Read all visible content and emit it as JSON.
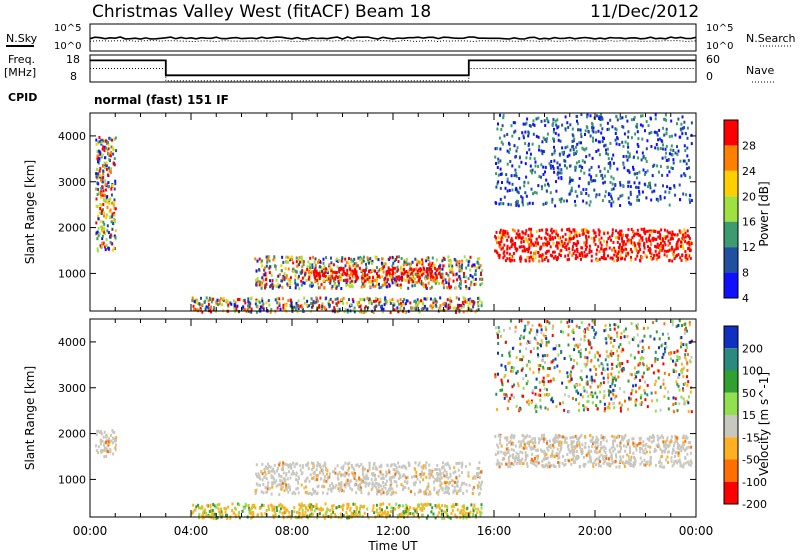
{
  "header": {
    "title": "Christmas Valley West (fitACF)",
    "beam": "Beam 18",
    "date": "11/Dec/2012"
  },
  "noise_panel": {
    "left_label": "N.Sky",
    "right_label": "N.Search",
    "left_ticks": [
      "10^5",
      "10^0"
    ],
    "right_ticks": [
      "10^5",
      "10^0"
    ]
  },
  "freq_panel": {
    "left_label_1": "Freq.",
    "left_label_2": "[MHz]",
    "right_label": "Nave",
    "left_ticks": [
      "18",
      "8"
    ],
    "right_ticks": [
      "60",
      "0"
    ]
  },
  "cpid": {
    "label": "CPID",
    "value": "normal (fast) 151 IF"
  },
  "chart_data": [
    {
      "type": "heatmap",
      "name": "Power",
      "ylabel": "Slant Range [km]",
      "xlabel": "",
      "ylim": [
        180,
        4500
      ],
      "yticks": [
        1000,
        2000,
        3000,
        4000
      ],
      "colorbar_label": "Power [dB]",
      "colorbar_ticks": [
        "28",
        "24",
        "20",
        "16",
        "12",
        "8",
        "4"
      ],
      "colorbar_colors": [
        "#ff0000",
        "#ff7f00",
        "#ffd000",
        "#a0e040",
        "#3c9c70",
        "#2050a0",
        "#1010ff"
      ],
      "features": [
        {
          "t0": 0.2,
          "t1": 1.0,
          "r0": 1500,
          "r1": 4000,
          "level": "mixed"
        },
        {
          "t0": 4.0,
          "t1": 15.5,
          "r0": 180,
          "r1": 500,
          "level": "mixed"
        },
        {
          "t0": 6.5,
          "t1": 15.5,
          "r0": 700,
          "r1": 1400,
          "level": "mixed"
        },
        {
          "t0": 8.5,
          "t1": 14.0,
          "r0": 850,
          "r1": 1150,
          "level": "high"
        },
        {
          "t0": 16.0,
          "t1": 23.8,
          "r0": 1300,
          "r1": 2000,
          "level": "high"
        },
        {
          "t0": 16.0,
          "t1": 23.8,
          "r0": 2500,
          "r1": 4500,
          "level": "low"
        }
      ]
    },
    {
      "type": "heatmap",
      "name": "Velocity",
      "ylabel": "Slant Range [km]",
      "xlabel": "Time UT",
      "xticks": [
        "00:00",
        "04:00",
        "08:00",
        "12:00",
        "16:00",
        "20:00",
        "00:00"
      ],
      "ylim": [
        180,
        4500
      ],
      "yticks": [
        1000,
        2000,
        3000,
        4000
      ],
      "colorbar_label": "Velocity [m s^-1]",
      "colorbar_ticks": [
        "200",
        "100",
        "50",
        "15",
        "-15",
        "-50",
        "-100",
        "-200"
      ],
      "colorbar_colors": [
        "#1030c0",
        "#2a8a80",
        "#30a030",
        "#90e050",
        "#c8c8c0",
        "#ffb020",
        "#ff7000",
        "#ff0000"
      ],
      "features": [
        {
          "t0": 0.2,
          "t1": 1.0,
          "r0": 1500,
          "r1": 2100,
          "level": "ground"
        },
        {
          "t0": 4.0,
          "t1": 15.5,
          "r0": 180,
          "r1": 500,
          "level": "negative"
        },
        {
          "t0": 6.5,
          "t1": 15.5,
          "r0": 700,
          "r1": 1400,
          "level": "ground"
        },
        {
          "t0": 16.0,
          "t1": 23.8,
          "r0": 1300,
          "r1": 2000,
          "level": "ground"
        },
        {
          "t0": 16.0,
          "t1": 23.8,
          "r0": 2500,
          "r1": 4500,
          "level": "mixed"
        }
      ]
    }
  ]
}
